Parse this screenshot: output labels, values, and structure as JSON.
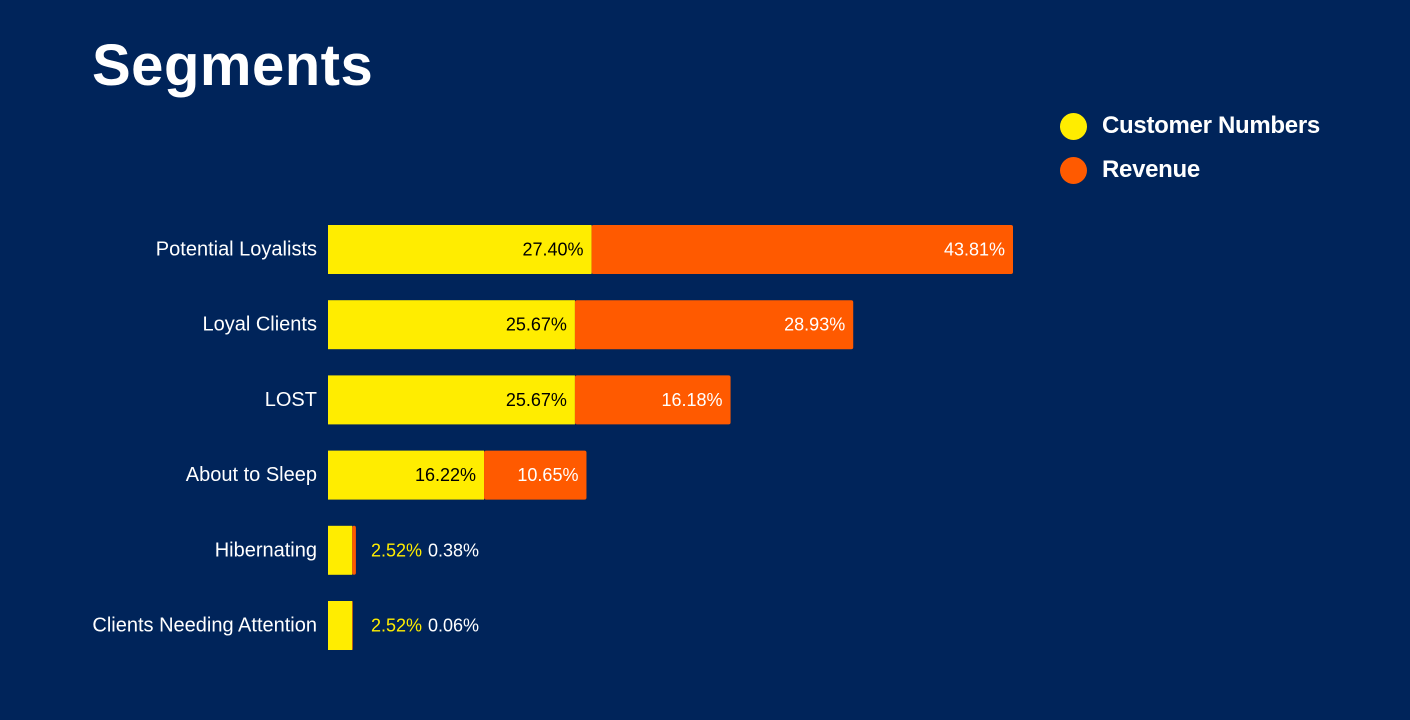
{
  "chart_data": {
    "type": "bar",
    "orientation": "horizontal",
    "stacked": true,
    "title": "Segments",
    "categories": [
      "Potential Loyalists",
      "Loyal Clients",
      "LOST",
      "About to Sleep",
      "Hibernating",
      "Clients Needing Attention"
    ],
    "series": [
      {
        "name": "Customer Numbers",
        "values": [
          27.4,
          25.67,
          25.67,
          16.22,
          2.52,
          2.52
        ],
        "labels": [
          "27.40%",
          "25.67%",
          "25.67%",
          "16.22%",
          "2.52%",
          "2.52%"
        ],
        "color": "#ffed00"
      },
      {
        "name": "Revenue",
        "values": [
          43.81,
          28.93,
          16.18,
          10.65,
          0.38,
          0.06
        ],
        "labels": [
          "43.81%",
          "28.93%",
          "16.18%",
          "10.65%",
          "0.38%",
          "0.06%"
        ],
        "color": "#ff5a00"
      }
    ],
    "legend_position": "top-right",
    "grid": false,
    "xlim": [
      0,
      75
    ]
  },
  "colors": {
    "background": "#00245a",
    "text": "#ffffff",
    "customer_numbers": "#ffed00",
    "revenue": "#ff5a00"
  }
}
